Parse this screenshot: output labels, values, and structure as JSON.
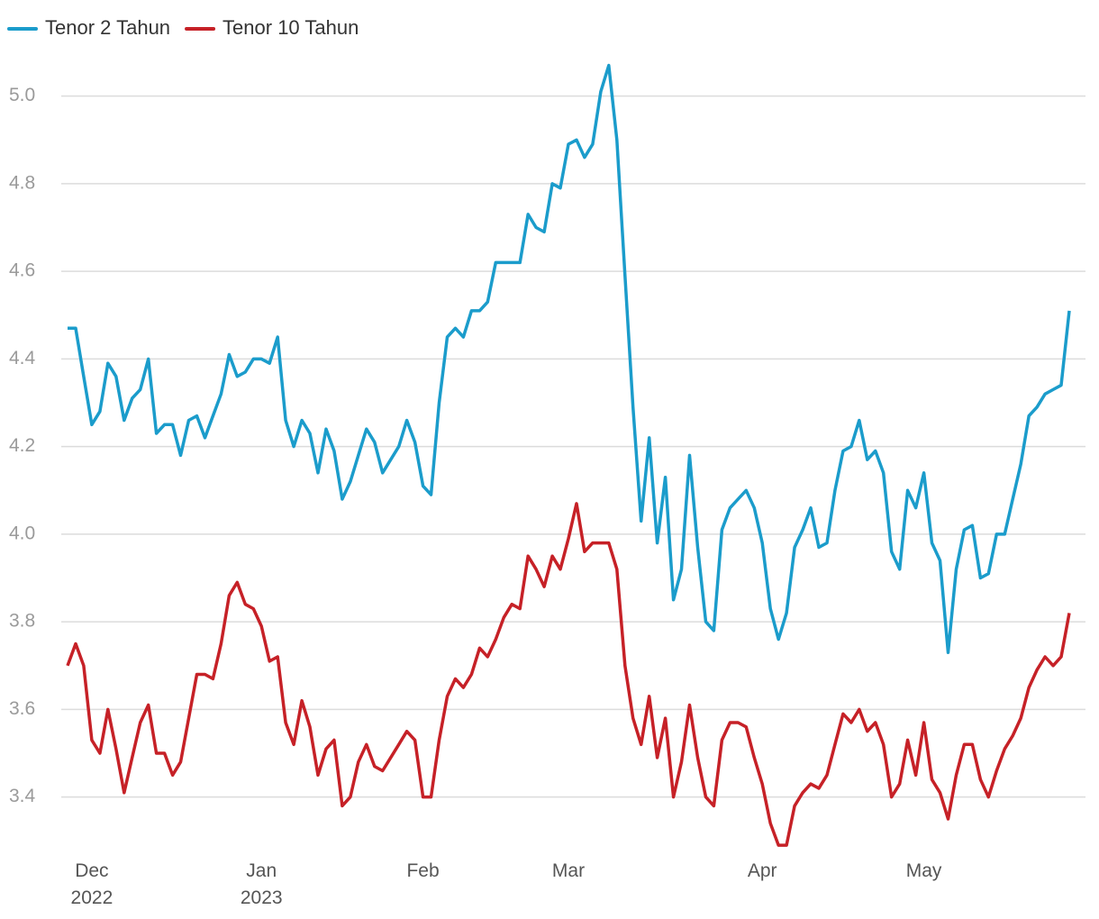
{
  "chart_data": {
    "type": "line",
    "categories": [
      null,
      null,
      null,
      "Dec\n2022",
      null,
      null,
      null,
      null,
      null,
      null,
      null,
      null,
      null,
      null,
      null,
      null,
      null,
      null,
      null,
      null,
      null,
      null,
      null,
      null,
      "Jan\n2023",
      null,
      null,
      null,
      null,
      null,
      null,
      null,
      null,
      null,
      null,
      null,
      null,
      null,
      null,
      null,
      null,
      null,
      null,
      null,
      "Feb",
      null,
      null,
      null,
      null,
      null,
      null,
      null,
      null,
      null,
      null,
      null,
      null,
      null,
      null,
      null,
      null,
      null,
      "Mar",
      null,
      null,
      null,
      null,
      null,
      null,
      null,
      null,
      null,
      null,
      null,
      null,
      null,
      null,
      null,
      null,
      null,
      null,
      null,
      null,
      null,
      null,
      null,
      "Apr",
      null,
      null,
      null,
      null,
      null,
      null,
      null,
      null,
      null,
      null,
      null,
      null,
      null,
      null,
      null,
      null,
      null,
      null,
      null,
      "May",
      null,
      null,
      null,
      null,
      null,
      null,
      null,
      null,
      null,
      null,
      null,
      null,
      null,
      null,
      null,
      null,
      null,
      null
    ],
    "series": [
      {
        "name": "Tenor 2 Tahun",
        "color": "#1b9ccb",
        "values": [
          4.47,
          4.47,
          4.36,
          4.25,
          4.28,
          4.39,
          4.36,
          4.26,
          4.31,
          4.33,
          4.4,
          4.23,
          4.25,
          4.25,
          4.18,
          4.26,
          4.27,
          4.22,
          4.27,
          4.32,
          4.41,
          4.36,
          4.37,
          4.4,
          4.4,
          4.39,
          4.45,
          4.26,
          4.2,
          4.26,
          4.23,
          4.14,
          4.24,
          4.19,
          4.08,
          4.12,
          4.18,
          4.24,
          4.21,
          4.14,
          4.17,
          4.2,
          4.26,
          4.21,
          4.11,
          4.09,
          4.3,
          4.45,
          4.47,
          4.45,
          4.51,
          4.51,
          4.53,
          4.62,
          4.62,
          4.62,
          4.62,
          4.73,
          4.7,
          4.69,
          4.8,
          4.79,
          4.89,
          4.9,
          4.86,
          4.89,
          5.01,
          5.07,
          4.9,
          4.59,
          4.29,
          4.03,
          4.22,
          3.98,
          4.13,
          3.85,
          3.92,
          4.18,
          3.97,
          3.8,
          3.78,
          4.01,
          4.06,
          4.08,
          4.1,
          4.06,
          3.98,
          3.83,
          3.76,
          3.82,
          3.97,
          4.01,
          4.06,
          3.97,
          3.98,
          4.1,
          4.19,
          4.2,
          4.26,
          4.17,
          4.19,
          4.14,
          3.96,
          3.92,
          4.1,
          4.06,
          4.14,
          3.98,
          3.94,
          3.73,
          3.92,
          4.01,
          4.02,
          3.9,
          3.91,
          4.0,
          4.0,
          4.08,
          4.16,
          4.27,
          4.29,
          4.32,
          4.33,
          4.34,
          4.51
        ]
      },
      {
        "name": "Tenor 10 Tahun",
        "color": "#c62127",
        "values": [
          3.7,
          3.75,
          3.7,
          3.53,
          3.5,
          3.6,
          3.51,
          3.41,
          3.49,
          3.57,
          3.61,
          3.5,
          3.5,
          3.45,
          3.48,
          3.58,
          3.68,
          3.68,
          3.67,
          3.75,
          3.86,
          3.89,
          3.84,
          3.83,
          3.79,
          3.71,
          3.72,
          3.57,
          3.52,
          3.62,
          3.56,
          3.45,
          3.51,
          3.53,
          3.38,
          3.4,
          3.48,
          3.52,
          3.47,
          3.46,
          3.49,
          3.52,
          3.55,
          3.53,
          3.4,
          3.4,
          3.53,
          3.63,
          3.67,
          3.65,
          3.68,
          3.74,
          3.72,
          3.76,
          3.81,
          3.84,
          3.83,
          3.95,
          3.92,
          3.88,
          3.95,
          3.92,
          3.99,
          4.07,
          3.96,
          3.98,
          3.98,
          3.98,
          3.92,
          3.7,
          3.58,
          3.52,
          3.63,
          3.49,
          3.58,
          3.4,
          3.48,
          3.61,
          3.49,
          3.4,
          3.38,
          3.53,
          3.57,
          3.57,
          3.56,
          3.49,
          3.43,
          3.34,
          3.29,
          3.29,
          3.38,
          3.41,
          3.43,
          3.42,
          3.45,
          3.52,
          3.59,
          3.57,
          3.6,
          3.55,
          3.57,
          3.52,
          3.4,
          3.43,
          3.53,
          3.45,
          3.57,
          3.44,
          3.41,
          3.35,
          3.45,
          3.52,
          3.52,
          3.44,
          3.4,
          3.46,
          3.51,
          3.54,
          3.58,
          3.65,
          3.69,
          3.72,
          3.7,
          3.72,
          3.82
        ]
      }
    ],
    "ylim": [
      3.28,
      5.1
    ],
    "yticks": [
      3.4,
      3.6,
      3.8,
      {
        "value": 4,
        "label": "4.0"
      },
      4.2,
      4.4,
      4.6,
      4.8,
      {
        "value": 5,
        "label": "5.0"
      }
    ],
    "grid": true,
    "legend": "top-left"
  }
}
